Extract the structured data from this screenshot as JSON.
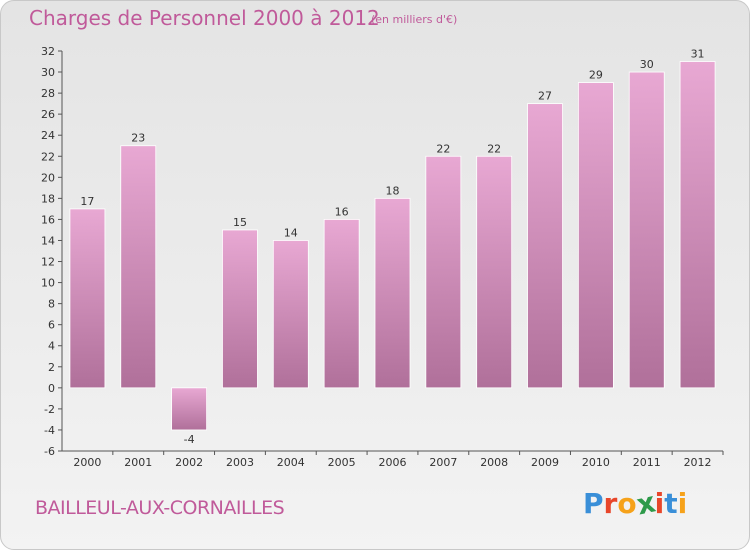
{
  "header": {
    "title": "Charges de Personnel 2000 à 2012",
    "unit": "(en milliers d'€)"
  },
  "footer": {
    "commune": "BAILLEUL-AUX-CORNAILLES",
    "logo_letters": [
      "P",
      "r",
      "o",
      "x",
      "i",
      "t",
      "i"
    ]
  },
  "colors": {
    "bar_top": "#e8a8d3",
    "bar_bottom": "#b0709a",
    "text_accent": "#c05a9a",
    "logo": [
      "#3a8fd8",
      "#e8462a",
      "#f6a21a",
      "#2e9a4a",
      "#e8462a",
      "#3a8fd8",
      "#f6a21a"
    ]
  },
  "chart_data": {
    "type": "bar",
    "categories": [
      "2000",
      "2001",
      "2002",
      "2003",
      "2004",
      "2005",
      "2006",
      "2007",
      "2008",
      "2009",
      "2010",
      "2011",
      "2012"
    ],
    "values": [
      17,
      23,
      -4,
      15,
      14,
      16,
      18,
      22,
      22,
      27,
      29,
      30,
      31
    ],
    "title": "Charges de Personnel 2000 à 2012",
    "xlabel": "",
    "ylabel": "",
    "ylim": [
      -6,
      32
    ],
    "yticks": [
      32,
      30,
      28,
      26,
      24,
      22,
      20,
      18,
      16,
      14,
      12,
      10,
      8,
      6,
      4,
      2,
      0,
      -2,
      -4,
      -6
    ],
    "grid": false
  }
}
